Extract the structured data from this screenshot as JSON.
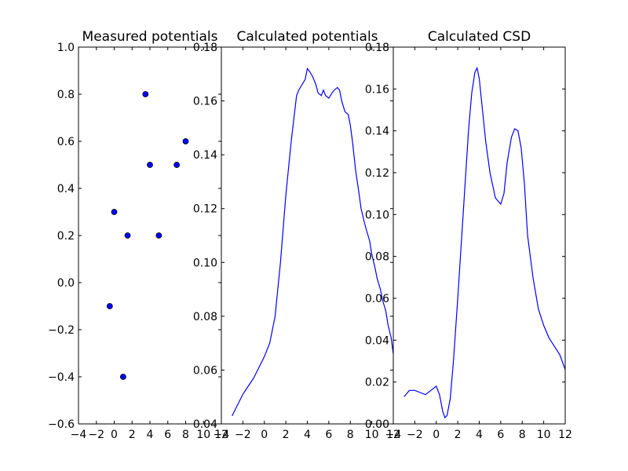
{
  "chart_data": [
    {
      "type": "scatter",
      "title": "Measured potentials",
      "xlabel": "",
      "ylabel": "",
      "xlim": [
        -4,
        12
      ],
      "ylim": [
        -0.6,
        1.0
      ],
      "xticks": [
        -4,
        -2,
        0,
        2,
        4,
        6,
        8,
        10,
        12
      ],
      "xtick_labels": [
        "−4",
        "−2",
        "0",
        "2",
        "4",
        "6",
        "8",
        "10",
        "12"
      ],
      "yticks": [
        -0.6,
        -0.4,
        -0.2,
        0.0,
        0.2,
        0.4,
        0.6,
        0.8,
        1.0
      ],
      "ytick_labels": [
        "−0.6",
        "−0.4",
        "−0.2",
        "0.0",
        "0.2",
        "0.4",
        "0.6",
        "0.8",
        "1.0"
      ],
      "grid": false,
      "marker_color": "#0000ff",
      "points": [
        {
          "x": 3.5,
          "y": 0.8
        },
        {
          "x": 8.0,
          "y": 0.6
        },
        {
          "x": 4.0,
          "y": 0.5
        },
        {
          "x": 7.0,
          "y": 0.5
        },
        {
          "x": 0.0,
          "y": 0.3
        },
        {
          "x": 1.5,
          "y": 0.2
        },
        {
          "x": 5.0,
          "y": 0.2
        },
        {
          "x": -0.5,
          "y": -0.1
        },
        {
          "x": 1.0,
          "y": -0.4
        }
      ]
    },
    {
      "type": "line",
      "title": "Calculated potentials",
      "xlabel": "",
      "ylabel": "",
      "xlim": [
        -4,
        12
      ],
      "ylim": [
        0.04,
        0.18
      ],
      "xticks": [
        -4,
        -2,
        0,
        2,
        4,
        6,
        8,
        10,
        12
      ],
      "xtick_labels": [
        "−4",
        "−2",
        "0",
        "2",
        "4",
        "6",
        "8",
        "10",
        "12"
      ],
      "yticks": [
        0.04,
        0.06,
        0.08,
        0.1,
        0.12,
        0.14,
        0.16,
        0.18
      ],
      "ytick_labels": [
        "0.04",
        "0.06",
        "0.08",
        "0.10",
        "0.12",
        "0.14",
        "0.16",
        "0.18"
      ],
      "grid": false,
      "line_color": "#0000ff",
      "series": [
        {
          "x": [
            -3.0,
            -2.5,
            -2.0,
            -1.5,
            -1.0,
            -0.5,
            0.0,
            0.5,
            1.0,
            1.5,
            2.0,
            2.5,
            3.0,
            3.2,
            3.5,
            3.8,
            4.0,
            4.2,
            4.5,
            4.8,
            5.0,
            5.3,
            5.5,
            5.7,
            6.0,
            6.3,
            6.5,
            6.8,
            7.0,
            7.2,
            7.5,
            7.8,
            8.0,
            8.2,
            8.5,
            8.8,
            9.0,
            9.3,
            9.5,
            9.8,
            10.0,
            10.3,
            10.5,
            10.8,
            11.0,
            11.3,
            11.5,
            11.8,
            12.0
          ],
          "y": [
            0.043,
            0.047,
            0.051,
            0.054,
            0.057,
            0.061,
            0.065,
            0.07,
            0.08,
            0.1,
            0.125,
            0.145,
            0.162,
            0.164,
            0.166,
            0.168,
            0.172,
            0.171,
            0.169,
            0.166,
            0.163,
            0.162,
            0.164,
            0.162,
            0.161,
            0.163,
            0.164,
            0.165,
            0.164,
            0.16,
            0.156,
            0.155,
            0.151,
            0.145,
            0.134,
            0.126,
            0.12,
            0.115,
            0.112,
            0.108,
            0.103,
            0.098,
            0.094,
            0.09,
            0.086,
            0.082,
            0.077,
            0.072,
            0.066
          ]
        }
      ]
    },
    {
      "type": "line",
      "title": "Calculated CSD",
      "xlabel": "",
      "ylabel": "",
      "xlim": [
        -4,
        12
      ],
      "ylim": [
        0.0,
        0.18
      ],
      "xticks": [
        -4,
        -2,
        0,
        2,
        4,
        6,
        8,
        10,
        12
      ],
      "xtick_labels": [
        "−4",
        "−2",
        "0",
        "2",
        "4",
        "6",
        "8",
        "10",
        "12"
      ],
      "yticks": [
        0.0,
        0.02,
        0.04,
        0.06,
        0.08,
        0.1,
        0.12,
        0.14,
        0.16,
        0.18
      ],
      "ytick_labels": [
        "0.00",
        "0.02",
        "0.04",
        "0.06",
        "0.08",
        "0.10",
        "0.12",
        "0.14",
        "0.16",
        "0.18"
      ],
      "grid": false,
      "line_color": "#0000ff",
      "series": [
        {
          "x": [
            -3.0,
            -2.5,
            -2.0,
            -1.5,
            -1.0,
            -0.5,
            0.0,
            0.3,
            0.6,
            0.8,
            1.0,
            1.3,
            1.6,
            2.0,
            2.5,
            3.0,
            3.3,
            3.6,
            3.8,
            4.0,
            4.3,
            4.6,
            5.0,
            5.5,
            6.0,
            6.3,
            6.6,
            7.0,
            7.3,
            7.6,
            7.9,
            8.2,
            8.5,
            9.0,
            9.5,
            10.0,
            10.5,
            11.0,
            11.5,
            12.0
          ],
          "y": [
            0.013,
            0.016,
            0.016,
            0.015,
            0.014,
            0.016,
            0.018,
            0.014,
            0.006,
            0.003,
            0.004,
            0.012,
            0.03,
            0.06,
            0.1,
            0.14,
            0.158,
            0.168,
            0.17,
            0.165,
            0.15,
            0.135,
            0.12,
            0.108,
            0.105,
            0.11,
            0.125,
            0.137,
            0.141,
            0.14,
            0.132,
            0.115,
            0.09,
            0.07,
            0.055,
            0.047,
            0.041,
            0.037,
            0.033,
            0.026
          ]
        }
      ]
    }
  ]
}
